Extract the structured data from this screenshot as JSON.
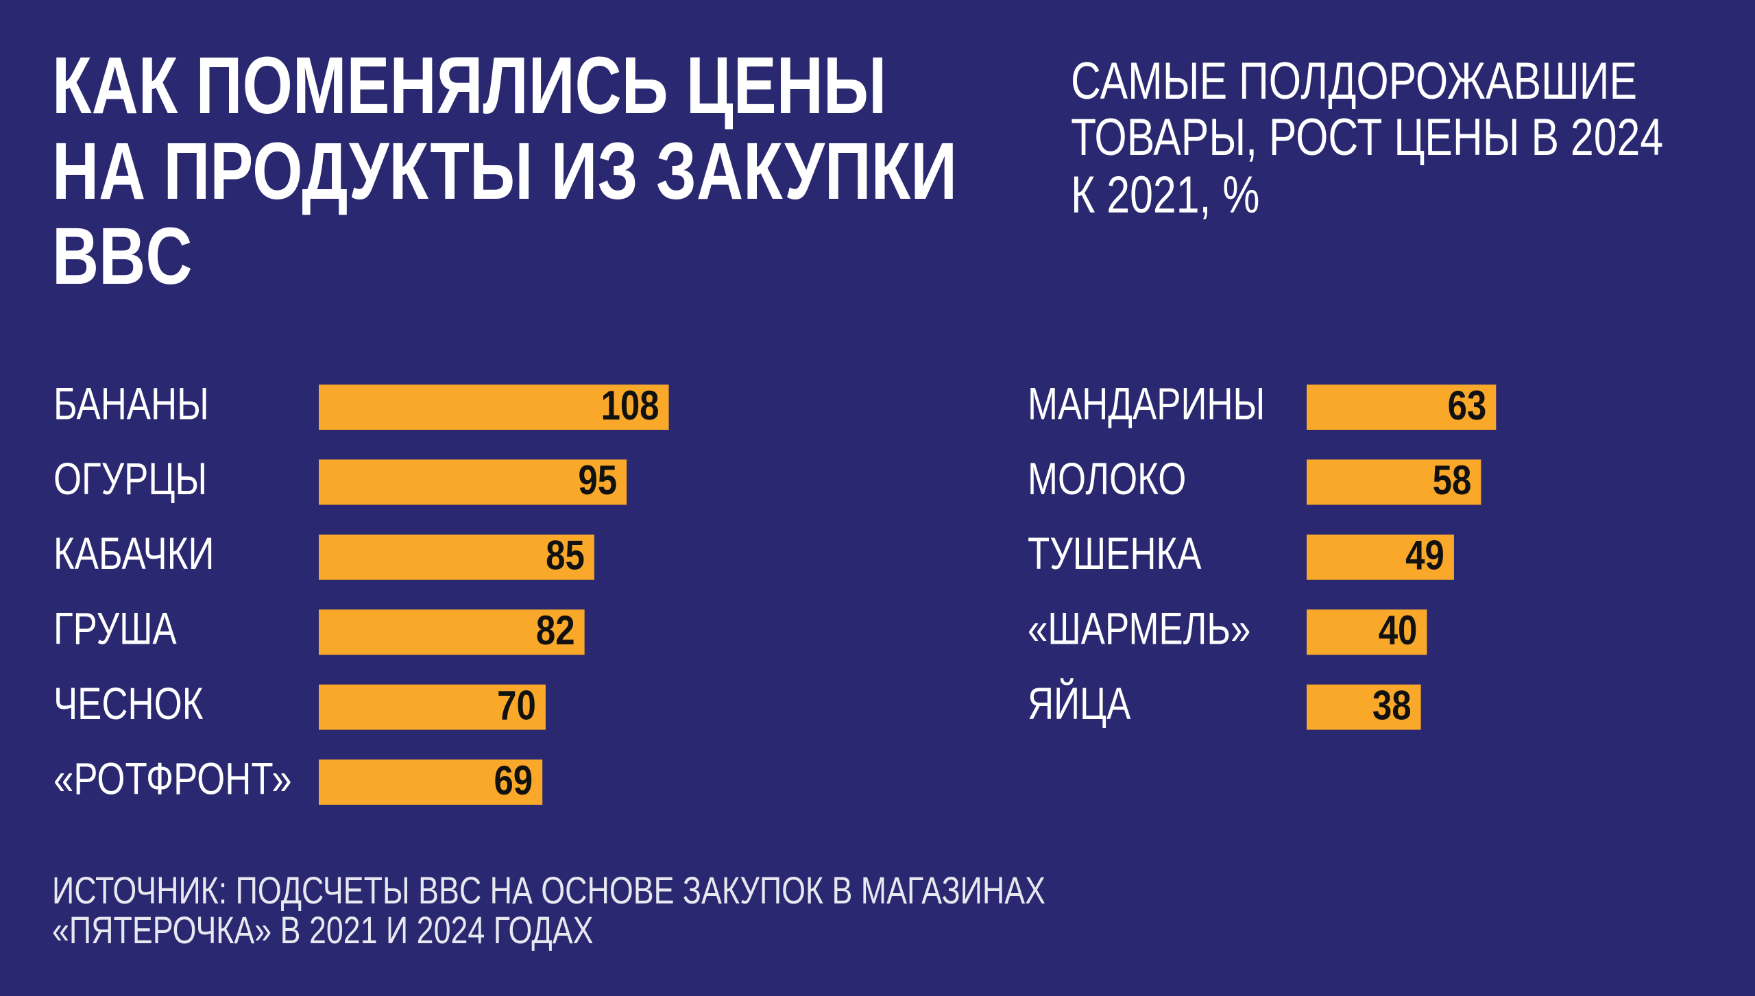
{
  "header": {
    "title": [
      "КАК ПОМЕНЯЛИСЬ ЦЕНЫ",
      "НА ПРОДУКТЫ ИЗ ЗАКУПКИ",
      "BBC"
    ],
    "subtitle": [
      "САМЫЕ ПОЛДОРОЖАВШИЕ",
      "ТОВАРЫ, РОСТ ЦЕНЫ В 2024",
      "К 2021, %"
    ]
  },
  "source": [
    "ИСТОЧНИК: ПОДСЧЕТЫ BBC НА ОСНОВЕ ЗАКУПОК В МАГАЗИНАХ",
    "«ПЯТЕРОЧКА» В 2021 И 2024 ГОДАХ"
  ],
  "chart_data": [
    {
      "type": "bar",
      "orientation": "horizontal",
      "color": "#f9a82a",
      "xlim": [
        0,
        110
      ],
      "categories": [
        "БАНАНЫ",
        "ОГУРЦЫ",
        "КАБАЧКИ",
        "ГРУША",
        "ЧЕСНОК",
        "«РОТФРОНТ»"
      ],
      "values": [
        108,
        95,
        85,
        82,
        70,
        69
      ]
    },
    {
      "type": "bar",
      "orientation": "horizontal",
      "color": "#f9a82a",
      "xlim": [
        0,
        70
      ],
      "categories": [
        "МАНДАРИНЫ",
        "МОЛОКО",
        "ТУШЕНКА",
        "«ШАРМЕЛЬ»",
        "ЯЙЦА"
      ],
      "values": [
        63,
        58,
        49,
        40,
        38
      ]
    }
  ]
}
